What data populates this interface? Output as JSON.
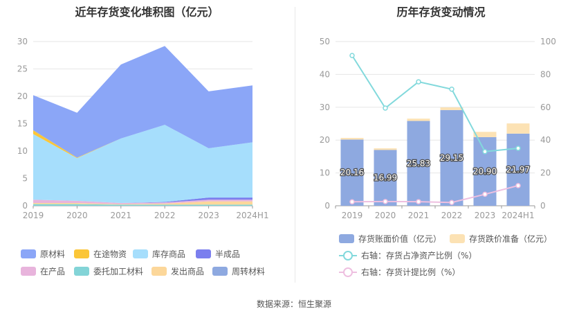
{
  "left": {
    "title": "近年存货变化堆积图（亿元）",
    "legend": [
      {
        "label": "原材料",
        "color": "#8ba6f7"
      },
      {
        "label": "在途物资",
        "color": "#fbc638"
      },
      {
        "label": "库存商品",
        "color": "#a6defc"
      },
      {
        "label": "半成品",
        "color": "#7b7fee"
      },
      {
        "label": "在产品",
        "color": "#e8b4dc"
      },
      {
        "label": "委托加工材料",
        "color": "#83d4d7"
      },
      {
        "label": "发出商品",
        "color": "#fcd79a"
      },
      {
        "label": "周转材料",
        "color": "#8ea9e0"
      }
    ]
  },
  "right": {
    "title": "历年存货变动情况",
    "legend": [
      {
        "label": "存货账面价值（亿元）",
        "color": "#8ea9e0",
        "kind": "bar"
      },
      {
        "label": "存货跌价准备（亿元）",
        "color": "#fce2b4",
        "kind": "bar"
      },
      {
        "label": "右轴：存货占净资产比例（%）",
        "color": "#82d9dc",
        "kind": "line"
      },
      {
        "label": "右轴：存货计提比例（%）",
        "color": "#eebfe0",
        "kind": "line"
      }
    ]
  },
  "source": "数据来源：恒生聚源",
  "chart_data": [
    {
      "type": "area",
      "title": "近年存货变化堆积图（亿元）",
      "categories": [
        "2019",
        "2020",
        "2021",
        "2022",
        "2023",
        "2024H1"
      ],
      "ylim": [
        0,
        30
      ],
      "yticks": [
        0,
        5,
        10,
        15,
        20,
        25,
        30
      ],
      "stacked": true,
      "grid": true,
      "legend_position": "bottom",
      "series": [
        {
          "name": "委托加工材料",
          "color": "#83d4d7",
          "values": [
            0.3,
            0.3,
            0.2,
            0.2,
            0.2,
            0.2
          ]
        },
        {
          "name": "发出商品",
          "color": "#fcd79a",
          "values": [
            0.2,
            0.2,
            0.1,
            0.2,
            0.6,
            0.6
          ]
        },
        {
          "name": "在产品",
          "color": "#e8b4dc",
          "values": [
            0.6,
            0.4,
            0.2,
            0.2,
            0.3,
            0.3
          ]
        },
        {
          "name": "半成品",
          "color": "#7b7fee",
          "values": [
            0.0,
            0.0,
            0.0,
            0.1,
            0.4,
            0.4
          ]
        },
        {
          "name": "库存商品",
          "color": "#a6defc",
          "values": [
            12.0,
            7.8,
            11.8,
            14.1,
            9.0,
            10.1
          ]
        },
        {
          "name": "在途物资",
          "color": "#fbc638",
          "values": [
            0.7,
            0.1,
            0.0,
            0.0,
            0.0,
            0.0
          ]
        },
        {
          "name": "周转材料",
          "color": "#8ea9e0",
          "values": [
            0.0,
            0.0,
            0.0,
            0.0,
            0.0,
            0.0
          ]
        },
        {
          "name": "原材料",
          "color": "#8ba6f7",
          "values": [
            6.4,
            8.2,
            13.5,
            14.4,
            10.4,
            10.4
          ]
        }
      ]
    },
    {
      "type": "bar",
      "title": "历年存货变动情况",
      "categories": [
        "2019",
        "2020",
        "2021",
        "2022",
        "2023",
        "2024H1"
      ],
      "ylim": [
        0,
        50
      ],
      "yticks": [
        0,
        10,
        20,
        30,
        40,
        50
      ],
      "y2lim": [
        0,
        100
      ],
      "y2ticks": [
        0,
        20,
        40,
        60,
        80,
        100
      ],
      "grid": true,
      "legend_position": "bottom",
      "series": [
        {
          "name": "存货账面价值（亿元）",
          "kind": "bar",
          "color": "#8ea9e0",
          "values": [
            20.16,
            16.99,
            25.83,
            29.15,
            20.9,
            21.97
          ],
          "labels": [
            "20.16",
            "16.99",
            "25.83",
            "29.15",
            "20.90",
            "21.97"
          ]
        },
        {
          "name": "存货跌价准备（亿元）",
          "kind": "bar",
          "color": "#fce2b4",
          "values": [
            0.5,
            0.5,
            0.7,
            0.8,
            1.6,
            3.1
          ]
        },
        {
          "name": "右轴：存货占净资产比例（%）",
          "kind": "line",
          "axis": "right",
          "color": "#82d9dc",
          "values": [
            91.5,
            59.5,
            75.5,
            71.0,
            33.0,
            35.0
          ]
        },
        {
          "name": "右轴：存货计提比例（%）",
          "kind": "line",
          "axis": "right",
          "color": "#eebfe0",
          "values": [
            2.4,
            2.6,
            2.5,
            2.0,
            7.0,
            12.3
          ]
        }
      ]
    }
  ]
}
